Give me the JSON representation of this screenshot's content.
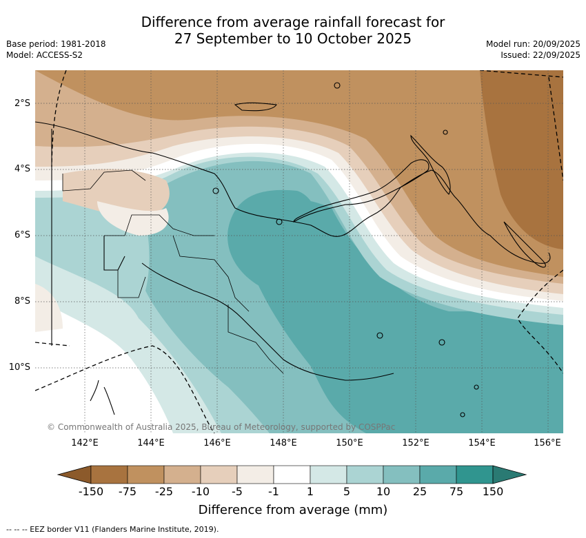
{
  "title_line1": "Difference from average rainfall forecast for",
  "title_line2": "27 September to 10 October 2025",
  "base_period": "Base period: 1981-2018",
  "model": "Model: ACCESS-S2",
  "model_run": "Model run: 20/09/2025",
  "issued": "Issued: 22/09/2025",
  "latitude_labels": [
    "2°S",
    "4°S",
    "6°S",
    "8°S",
    "10°S"
  ],
  "longitude_labels": [
    "142°E",
    "144°E",
    "146°E",
    "148°E",
    "150°E",
    "152°E",
    "154°E",
    "156°E"
  ],
  "copyright": "© Commonwealth of Australia 2025, Bureau of Meteorology, supported by COSPPac",
  "colorbar": {
    "ticks": [
      "-150",
      "-75",
      "-25",
      "-10",
      "-5",
      "-1",
      "1",
      "5",
      "10",
      "25",
      "75",
      "150"
    ],
    "colors": [
      "#8c5a2b",
      "#a8733f",
      "#c0915f",
      "#d4b08e",
      "#e6cfbb",
      "#f3ede6",
      "#ffffff",
      "#d4e8e6",
      "#abd4d3",
      "#84bfbf",
      "#5aaaaa",
      "#30958f",
      "#2a7a73"
    ],
    "title": "Difference from average (mm)"
  },
  "footer": "--  --  -- EEZ border V11 (Flanders Marine Institute, 2019)."
}
